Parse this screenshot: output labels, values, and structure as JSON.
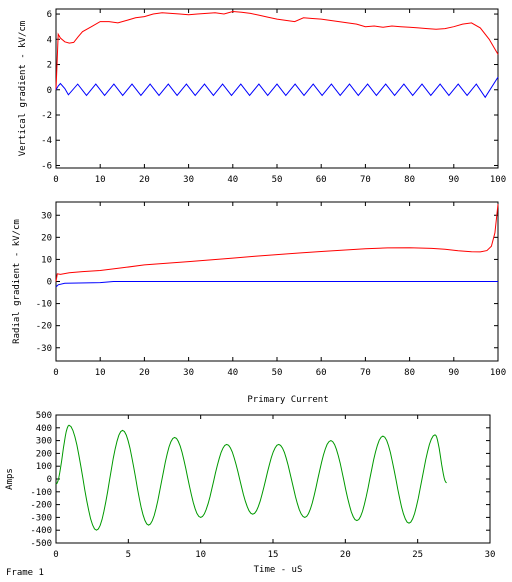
{
  "frame_label": "Frame 1",
  "colors": {
    "red": "#ff0000",
    "blue": "#0000ff",
    "green": "#009900",
    "axis": "#000000"
  },
  "chart_data": [
    {
      "type": "line",
      "title": "",
      "xlabel": "",
      "ylabel": "Vertical gradient - kV/cm",
      "xlim": [
        0,
        100
      ],
      "ylim": [
        -6.2,
        6.4
      ],
      "xticks": [
        0,
        10,
        20,
        30,
        40,
        50,
        60,
        70,
        80,
        90,
        100
      ],
      "yticks": [
        -6,
        -4,
        -2,
        0,
        2,
        4,
        6
      ],
      "series": [
        {
          "color": "red",
          "x": [
            0,
            0.5,
            1,
            2,
            3,
            4,
            5,
            6,
            8,
            10,
            12,
            14,
            16,
            18,
            20,
            22,
            24,
            26,
            28,
            30,
            32,
            34,
            36,
            38,
            40,
            42,
            44,
            46,
            48,
            50,
            52,
            54,
            56,
            58,
            60,
            62,
            64,
            66,
            68,
            70,
            72,
            74,
            76,
            78,
            80,
            82,
            84,
            86,
            88,
            90,
            92,
            94,
            96,
            98,
            100
          ],
          "y": [
            0,
            4.4,
            4.1,
            3.8,
            3.7,
            3.75,
            4.2,
            4.6,
            5.0,
            5.4,
            5.4,
            5.3,
            5.5,
            5.7,
            5.8,
            6.0,
            6.1,
            6.05,
            6.0,
            5.95,
            6.0,
            6.05,
            6.1,
            6.0,
            6.2,
            6.15,
            6.05,
            5.9,
            5.75,
            5.6,
            5.5,
            5.4,
            5.7,
            5.65,
            5.6,
            5.5,
            5.4,
            5.3,
            5.2,
            5.0,
            5.05,
            4.95,
            5.05,
            5.0,
            4.95,
            4.9,
            4.85,
            4.8,
            4.85,
            5.0,
            5.2,
            5.3,
            4.9,
            4.0,
            2.8
          ]
        },
        {
          "color": "blue",
          "x": [
            0,
            0.5,
            1,
            2,
            2.8,
            4.9,
            6.9,
            9.0,
            11.0,
            13.1,
            15.1,
            17.2,
            19.2,
            21.3,
            23.3,
            25.4,
            27.4,
            29.5,
            31.5,
            33.6,
            35.6,
            37.7,
            39.7,
            41.8,
            43.8,
            45.9,
            47.9,
            50.0,
            52.0,
            54.1,
            56.1,
            58.2,
            60.2,
            62.3,
            64.3,
            66.4,
            68.4,
            70.5,
            72.5,
            74.6,
            76.6,
            78.7,
            80.7,
            82.8,
            84.8,
            86.9,
            88.9,
            91.0,
            93.0,
            95.1,
            97.1,
            100
          ],
          "y": [
            0,
            0.3,
            0.5,
            0.1,
            -0.4,
            0.45,
            -0.45,
            0.45,
            -0.45,
            0.45,
            -0.45,
            0.45,
            -0.45,
            0.45,
            -0.45,
            0.45,
            -0.45,
            0.45,
            -0.45,
            0.45,
            -0.45,
            0.45,
            -0.45,
            0.45,
            -0.45,
            0.45,
            -0.45,
            0.45,
            -0.45,
            0.45,
            -0.45,
            0.45,
            -0.45,
            0.45,
            -0.45,
            0.45,
            -0.45,
            0.45,
            -0.45,
            0.45,
            -0.45,
            0.45,
            -0.45,
            0.45,
            -0.45,
            0.45,
            -0.45,
            0.45,
            -0.45,
            0.45,
            -0.6,
            1.0
          ]
        }
      ]
    },
    {
      "type": "line",
      "title": "",
      "xlabel": "",
      "ylabel": "Radial gradient - kV/cm",
      "xlim": [
        0,
        100
      ],
      "ylim": [
        -36,
        36
      ],
      "xticks": [
        0,
        10,
        20,
        30,
        40,
        50,
        60,
        70,
        80,
        90,
        100
      ],
      "yticks": [
        -30,
        -20,
        -10,
        0,
        10,
        20,
        30
      ],
      "series": [
        {
          "color": "red",
          "x": [
            0,
            0.3,
            1,
            3,
            6,
            10,
            15,
            20,
            25,
            30,
            35,
            40,
            45,
            50,
            55,
            60,
            65,
            70,
            75,
            80,
            85,
            88,
            91,
            94,
            96,
            97.5,
            98.5,
            99.3,
            100
          ],
          "y": [
            0,
            3.5,
            3.2,
            4.0,
            4.5,
            5.0,
            6.2,
            7.5,
            8.3,
            9.0,
            9.8,
            10.6,
            11.4,
            12.2,
            12.9,
            13.6,
            14.2,
            14.8,
            15.2,
            15.3,
            15.0,
            14.6,
            13.9,
            13.5,
            13.4,
            14.0,
            16.0,
            22.0,
            35.0
          ]
        },
        {
          "color": "blue",
          "x": [
            0,
            0.5,
            2,
            10,
            13,
            100
          ],
          "y": [
            -2.5,
            -1.5,
            -0.8,
            -0.5,
            0,
            0
          ]
        }
      ]
    },
    {
      "type": "line",
      "title": "Primary Current",
      "xlabel": "Time - uS",
      "ylabel": "Amps",
      "xlim": [
        0,
        30
      ],
      "ylim": [
        -500,
        500
      ],
      "xticks": [
        0,
        5,
        10,
        15,
        20,
        25,
        30
      ],
      "yticks": [
        -500,
        -400,
        -300,
        -200,
        -100,
        0,
        100,
        200,
        300,
        400,
        500
      ],
      "series": [
        {
          "color": "green",
          "x": [
            0,
            0.9,
            2.8,
            4.6,
            6.4,
            8.2,
            10.0,
            11.8,
            13.6,
            15.4,
            17.2,
            19.0,
            20.8,
            22.6,
            24.4,
            26.2,
            27.0
          ],
          "y": [
            -40,
            420,
            -400,
            380,
            -360,
            325,
            -300,
            270,
            -275,
            270,
            -300,
            300,
            -325,
            335,
            -345,
            345,
            -30
          ]
        }
      ]
    }
  ]
}
